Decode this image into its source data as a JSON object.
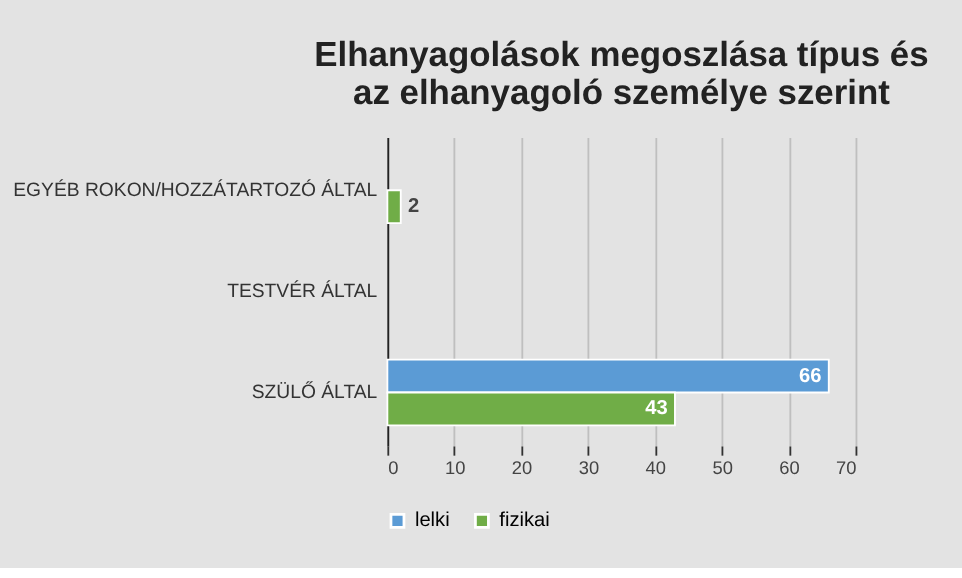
{
  "chart_data": {
    "type": "bar",
    "orientation": "horizontal",
    "title": "Elhanyagolások megoszlása típus és az elhanyagoló személye szerint",
    "categories": [
      "EGYÉB ROKON/HOZZÁTARTOZÓ ÁLTAL",
      "TESTVÉR ÁLTAL",
      "SZÜLŐ ÁLTAL"
    ],
    "series": [
      {
        "name": "lelki",
        "color": "#5b9bd5",
        "values": [
          null,
          null,
          66
        ]
      },
      {
        "name": "fizikai",
        "color": "#70ad47",
        "values": [
          2,
          null,
          43
        ]
      }
    ],
    "xlim": [
      0,
      70
    ],
    "xticks": [
      0,
      10,
      20,
      30,
      40,
      50,
      60,
      70
    ],
    "grid": "x",
    "legend": "bottom",
    "data_labels": true
  }
}
